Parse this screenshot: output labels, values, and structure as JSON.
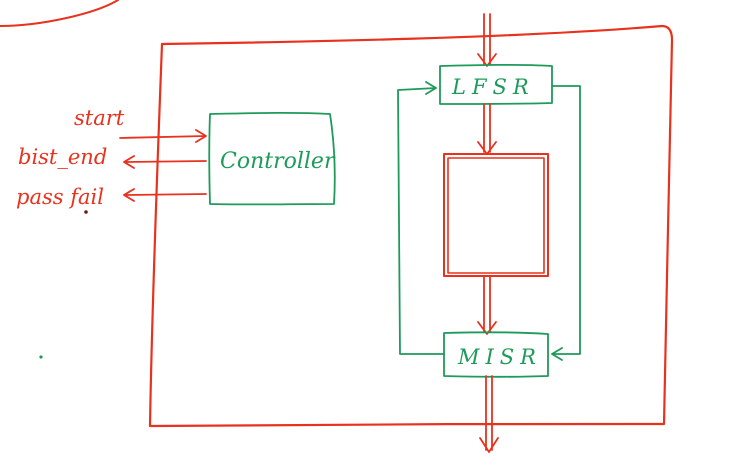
{
  "diagram": {
    "colors": {
      "red": "#e8321e",
      "green": "#1e9a5a",
      "background": "#ffffff"
    },
    "signals": {
      "start": "start",
      "bist_end": "bist_end",
      "pass_fail": "pass fail"
    },
    "blocks": {
      "controller": "Controller",
      "lfsr": "LFSR",
      "misr": "MISR"
    }
  }
}
